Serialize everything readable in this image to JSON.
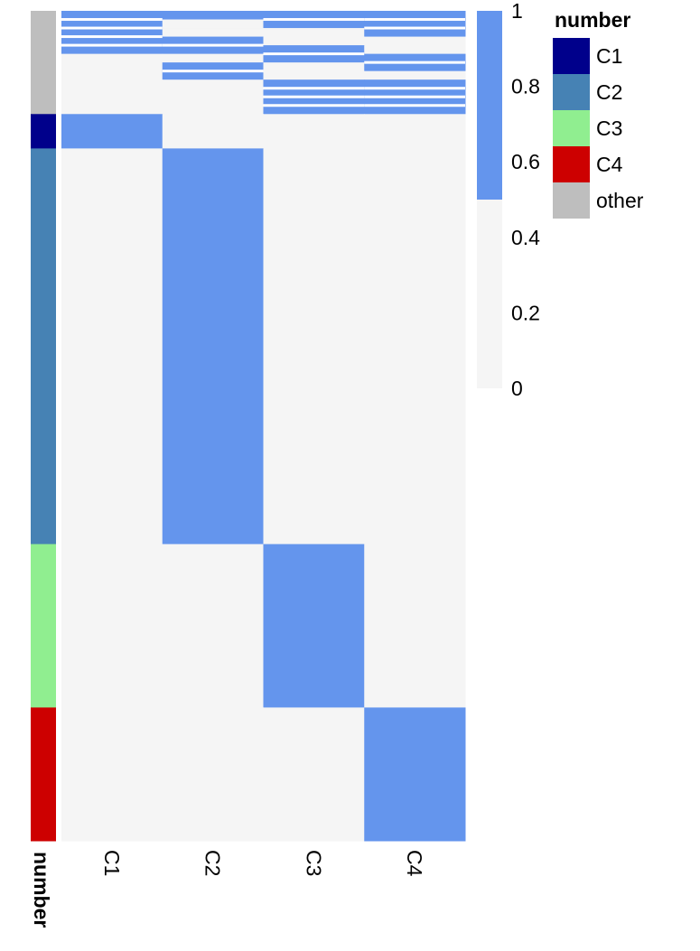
{
  "chart_data": {
    "type": "heatmap",
    "columns": [
      "C1",
      "C2",
      "C3",
      "C4"
    ],
    "annotation_title": "number",
    "annotation_legend": [
      {
        "label": "C1",
        "color": "#00008B"
      },
      {
        "label": "C2",
        "color": "#4682B4"
      },
      {
        "label": "C3",
        "color": "#90EE90"
      },
      {
        "label": "C4",
        "color": "#CD0000"
      },
      {
        "label": "other",
        "color": "#BEBEBE"
      }
    ],
    "colorbar": {
      "ticks": [
        "1",
        "0.8",
        "0.6",
        "0.4",
        "0.2",
        "0"
      ],
      "values": [
        1,
        0.8,
        0.6,
        0.4,
        0.2,
        0
      ],
      "threshold": 0.5,
      "high_color": "#6495ED",
      "low_color": "#F5F5F5"
    },
    "row_groups": [
      {
        "group": "other",
        "rows": [
          [
            1,
            1,
            1,
            1
          ],
          [
            1,
            0,
            1,
            1
          ],
          [
            1,
            0,
            0,
            1
          ],
          [
            1,
            1,
            0,
            0
          ],
          [
            1,
            1,
            1,
            0
          ],
          [
            0,
            0,
            1,
            1
          ],
          [
            0,
            1,
            0,
            1
          ],
          [
            0,
            1,
            0,
            0
          ],
          [
            0,
            0,
            1,
            1
          ],
          [
            0,
            0,
            1,
            1
          ],
          [
            0,
            0,
            1,
            1
          ],
          [
            0,
            0,
            1,
            1
          ]
        ]
      },
      {
        "group": "C1",
        "rows": [
          [
            1,
            0,
            0,
            0
          ]
        ],
        "weight": 4
      },
      {
        "group": "C2",
        "rows": [
          [
            0,
            1,
            0,
            0
          ]
        ],
        "weight": 46
      },
      {
        "group": "C3",
        "rows": [
          [
            0,
            0,
            1,
            0
          ]
        ],
        "weight": 19
      },
      {
        "group": "C4",
        "rows": [
          [
            0,
            0,
            0,
            1
          ]
        ],
        "weight": 15.5
      }
    ]
  }
}
